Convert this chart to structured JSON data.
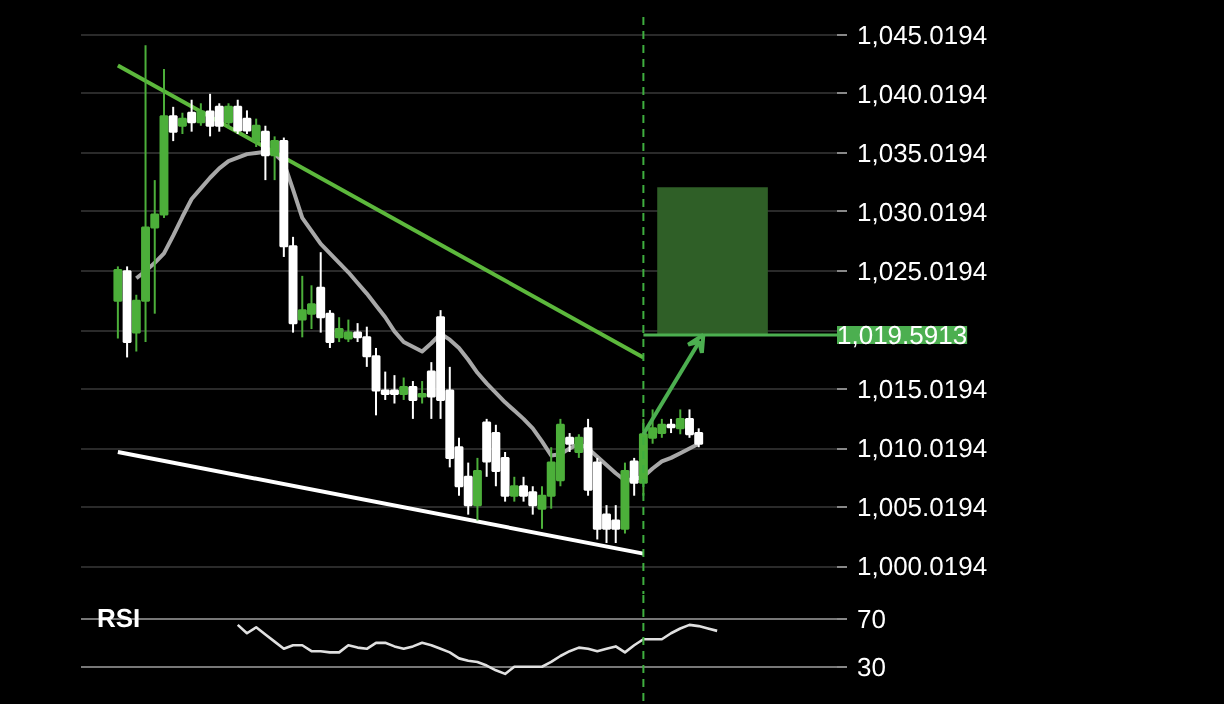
{
  "chart_data": [
    {
      "type": "candlestick",
      "categories": [
        null,
        null,
        null,
        null,
        null,
        null,
        null,
        null,
        null,
        null,
        null,
        null,
        null,
        null,
        null,
        null,
        null,
        null,
        null,
        null,
        null,
        null,
        null,
        null,
        null,
        null,
        null,
        null,
        null,
        null,
        null,
        null,
        null,
        null,
        null,
        null,
        null,
        null,
        null,
        null,
        null,
        null,
        null,
        null,
        null,
        null,
        null,
        null,
        null,
        null,
        null,
        null,
        null,
        null,
        null,
        null,
        null,
        null,
        null,
        null,
        null,
        null,
        null,
        null
      ],
      "ohlc": [
        [
          1022.5,
          1025.4,
          1019.3,
          1025.1
        ],
        [
          1025.0,
          1025.4,
          1017.7,
          1019.0
        ],
        [
          1019.8,
          1023.0,
          1018.2,
          1022.5
        ],
        [
          1022.5,
          1044.1,
          1019.0,
          1028.7
        ],
        [
          1028.7,
          1032.7,
          1021.4,
          1029.8
        ],
        [
          1029.8,
          1042.1,
          1029.5,
          1038.1
        ],
        [
          1038.1,
          1038.9,
          1036.0,
          1036.8
        ],
        [
          1037.3,
          1038.4,
          1036.6,
          1037.9
        ],
        [
          1038.4,
          1039.5,
          1036.8,
          1037.6
        ],
        [
          1037.6,
          1039.2,
          1037.3,
          1038.5
        ],
        [
          1038.5,
          1040.0,
          1036.4,
          1037.3
        ],
        [
          1038.9,
          1039.2,
          1036.8,
          1037.3
        ],
        [
          1037.6,
          1039.2,
          1037.1,
          1038.9
        ],
        [
          1038.9,
          1039.5,
          1036.6,
          1036.9
        ],
        [
          1037.9,
          1038.6,
          1036.6,
          1036.9
        ],
        [
          1036.0,
          1037.9,
          1035.5,
          1037.3
        ],
        [
          1036.8,
          1037.3,
          1032.7,
          1034.8
        ],
        [
          1034.8,
          1036.4,
          1032.7,
          1036.0
        ],
        [
          1036.0,
          1036.3,
          1026.2,
          1027.1
        ],
        [
          1027.1,
          1027.9,
          1019.8,
          1020.6
        ],
        [
          1020.9,
          1024.6,
          1019.4,
          1021.7
        ],
        [
          1021.4,
          1023.8,
          1020.1,
          1022.2
        ],
        [
          1023.6,
          1026.6,
          1019.8,
          1021.1
        ],
        [
          1021.4,
          1021.7,
          1018.5,
          1019.0
        ],
        [
          1019.4,
          1021.1,
          1019.0,
          1020.1
        ],
        [
          1019.3,
          1020.9,
          1019.0,
          1019.8
        ],
        [
          1019.8,
          1020.6,
          1019.0,
          1019.4
        ],
        [
          1019.4,
          1020.3,
          1016.9,
          1017.8
        ],
        [
          1017.8,
          1018.5,
          1012.8,
          1014.9
        ],
        [
          1014.9,
          1016.5,
          1014.1,
          1014.6
        ],
        [
          1014.9,
          1016.2,
          1013.8,
          1014.6
        ],
        [
          1014.6,
          1016.0,
          1014.1,
          1015.2
        ],
        [
          1015.2,
          1015.7,
          1012.5,
          1014.1
        ],
        [
          1014.4,
          1015.7,
          1013.8,
          1014.6
        ],
        [
          1016.5,
          1017.3,
          1012.5,
          1014.4
        ],
        [
          1021.1,
          1021.7,
          1012.5,
          1014.1
        ],
        [
          1014.9,
          1016.9,
          1008.4,
          1009.2
        ],
        [
          1010.1,
          1010.9,
          1006.0,
          1006.8
        ],
        [
          1007.6,
          1008.8,
          1004.4,
          1005.2
        ],
        [
          1005.2,
          1009.2,
          1003.9,
          1008.1
        ],
        [
          1012.2,
          1012.5,
          1007.6,
          1008.9
        ],
        [
          1011.3,
          1012.0,
          1006.8,
          1008.1
        ],
        [
          1009.2,
          1009.7,
          1005.5,
          1006.0
        ],
        [
          1006.0,
          1007.6,
          1005.5,
          1006.8
        ],
        [
          1006.8,
          1007.6,
          1005.5,
          1006.0
        ],
        [
          1006.3,
          1006.8,
          1004.4,
          1005.2
        ],
        [
          1004.9,
          1006.8,
          1003.2,
          1006.0
        ],
        [
          1006.0,
          1010.1,
          1004.9,
          1008.8
        ],
        [
          1007.3,
          1012.5,
          1006.8,
          1012.0
        ],
        [
          1010.9,
          1011.3,
          1009.7,
          1010.4
        ],
        [
          1009.7,
          1011.2,
          1009.2,
          1010.9
        ],
        [
          1011.7,
          1012.5,
          1006.0,
          1006.5
        ],
        [
          1008.8,
          1009.2,
          1002.3,
          1003.2
        ],
        [
          1004.4,
          1005.2,
          1002.0,
          1003.2
        ],
        [
          1003.9,
          1005.2,
          1002.0,
          1003.2
        ],
        [
          1003.2,
          1008.8,
          1002.8,
          1008.1
        ],
        [
          1008.9,
          1009.2,
          1006.0,
          1007.1
        ],
        [
          1007.1,
          1012.5,
          1006.0,
          1011.2
        ],
        [
          1010.9,
          1013.3,
          1010.4,
          1011.7
        ],
        [
          1011.3,
          1012.5,
          1010.9,
          1012.0
        ],
        [
          1012.0,
          1012.5,
          1011.3,
          1011.8
        ],
        [
          1011.7,
          1013.3,
          1011.2,
          1012.5
        ],
        [
          1012.5,
          1013.3,
          1010.9,
          1011.2
        ],
        [
          1011.3,
          1011.7,
          1010.1,
          1010.4
        ]
      ],
      "series": [
        {
          "type": "line",
          "color": "#a8a8a8",
          "values": [
            null,
            null,
            1024.4,
            1025.0,
            1025.7,
            1026.5,
            1028.0,
            1029.6,
            1031.1,
            1032.0,
            1032.9,
            1033.7,
            1034.3,
            1034.6,
            1034.9,
            1035.0,
            1035.1,
            1034.9,
            1034.2,
            1031.9,
            1029.5,
            1028.4,
            1027.3,
            1026.5,
            1025.7,
            1024.9,
            1024.0,
            1023.1,
            1022.1,
            1021.1,
            1019.9,
            1019.0,
            1018.6,
            1018.2,
            1018.9,
            1019.7,
            1019.2,
            1018.5,
            1017.5,
            1016.4,
            1015.5,
            1014.7,
            1013.9,
            1013.2,
            1012.5,
            1011.7,
            1010.6,
            1009.4,
            1009.5,
            1010.0,
            1010.4,
            1010.0,
            1009.3,
            1008.6,
            1007.9,
            1007.3,
            1007.4,
            1007.6,
            1008.3,
            1008.9,
            1009.2,
            1009.6,
            1010.0,
            1010.4
          ]
        },
        {
          "type": "line",
          "color": "#5cb83c",
          "values": [
            1042.4,
            null,
            null,
            null,
            null,
            null,
            null,
            null,
            null,
            null,
            null,
            null,
            null,
            null,
            null,
            null,
            null,
            null,
            null,
            null,
            null,
            null,
            null,
            null,
            null,
            null,
            null,
            null,
            null,
            null,
            null,
            null,
            null,
            null,
            null,
            null,
            null,
            null,
            null,
            null,
            null,
            null,
            null,
            null,
            null,
            null,
            null,
            null,
            null,
            null,
            null,
            null,
            null,
            null,
            null,
            null,
            null,
            1017.7,
            null,
            null,
            null,
            null,
            null,
            null
          ]
        },
        {
          "type": "line",
          "color": "#ffffff",
          "values": [
            1009.7,
            null,
            null,
            null,
            null,
            null,
            null,
            null,
            null,
            null,
            null,
            null,
            null,
            null,
            null,
            null,
            null,
            null,
            null,
            null,
            null,
            null,
            null,
            null,
            null,
            null,
            null,
            null,
            null,
            null,
            null,
            null,
            null,
            null,
            null,
            null,
            null,
            null,
            null,
            null,
            null,
            null,
            null,
            null,
            null,
            null,
            null,
            null,
            null,
            null,
            null,
            null,
            null,
            null,
            null,
            null,
            null,
            1001.1,
            null,
            null,
            null,
            null,
            null,
            null
          ]
        }
      ],
      "ylim": [
        997.6,
        1046.5
      ],
      "yticks": [
        {
          "value": 1000.0194,
          "label": "1,000.0194"
        },
        {
          "value": 1005.0194,
          "label": "1,005.0194"
        },
        {
          "value": 1010.0194,
          "label": "1,010.0194"
        },
        {
          "value": 1015.0194,
          "label": "1,015.0194"
        },
        {
          "value": 1020.0194,
          "label": null
        },
        {
          "value": 1025.0194,
          "label": "1,025.0194"
        },
        {
          "value": 1030.0194,
          "label": "1,030.0194"
        },
        {
          "value": 1035.0194,
          "label": "1,035.0194"
        },
        {
          "value": 1040.0194,
          "label": "1,040.0194"
        },
        {
          "value": 1045.0194,
          "label": "1,045.0194"
        }
      ],
      "tick_labels": "y",
      "grid": "y",
      "ref_lines": [
        {
          "axis": "y",
          "value": 1019.5913,
          "label": "1,019.5913",
          "color": "#4caf50"
        }
      ],
      "bands": [
        {
          "axis": "y",
          "from": 1019.5913,
          "to": 1032.1,
          "color": "#2f5f27"
        }
      ]
    },
    {
      "type": "line",
      "title": "RSI",
      "color": "#e0e0e0",
      "categories": [
        null,
        null,
        null,
        null,
        null,
        null,
        null,
        null,
        null,
        null,
        null,
        null,
        null,
        null,
        null,
        null,
        null,
        null,
        null,
        null,
        null,
        null,
        null,
        null,
        null,
        null,
        null,
        null,
        null,
        null,
        null,
        null,
        null,
        null,
        null,
        null,
        null,
        null,
        null,
        null,
        null,
        null,
        null,
        null,
        null,
        null,
        null,
        null,
        null,
        null,
        null,
        null,
        null,
        null,
        null,
        null,
        null,
        null,
        null,
        null,
        null,
        null,
        null,
        null,
        null,
        null
      ],
      "values": [
        null,
        null,
        null,
        null,
        null,
        null,
        null,
        null,
        null,
        null,
        null,
        null,
        null,
        65,
        58,
        63,
        57,
        51,
        45,
        48,
        48,
        43,
        43,
        42,
        42,
        48,
        46,
        45,
        50,
        50,
        47,
        45,
        47,
        50,
        48,
        45,
        42,
        37,
        35,
        34,
        31,
        27,
        24,
        30,
        30,
        30,
        30,
        34,
        39,
        43,
        46,
        45,
        43,
        45,
        47,
        42,
        48,
        53,
        53,
        53,
        58,
        62,
        65,
        64,
        62,
        60
      ],
      "ylim": [
        -2,
        90
      ],
      "yticks": [
        30,
        70
      ],
      "grid": "y",
      "tick_labels": "y"
    }
  ]
}
